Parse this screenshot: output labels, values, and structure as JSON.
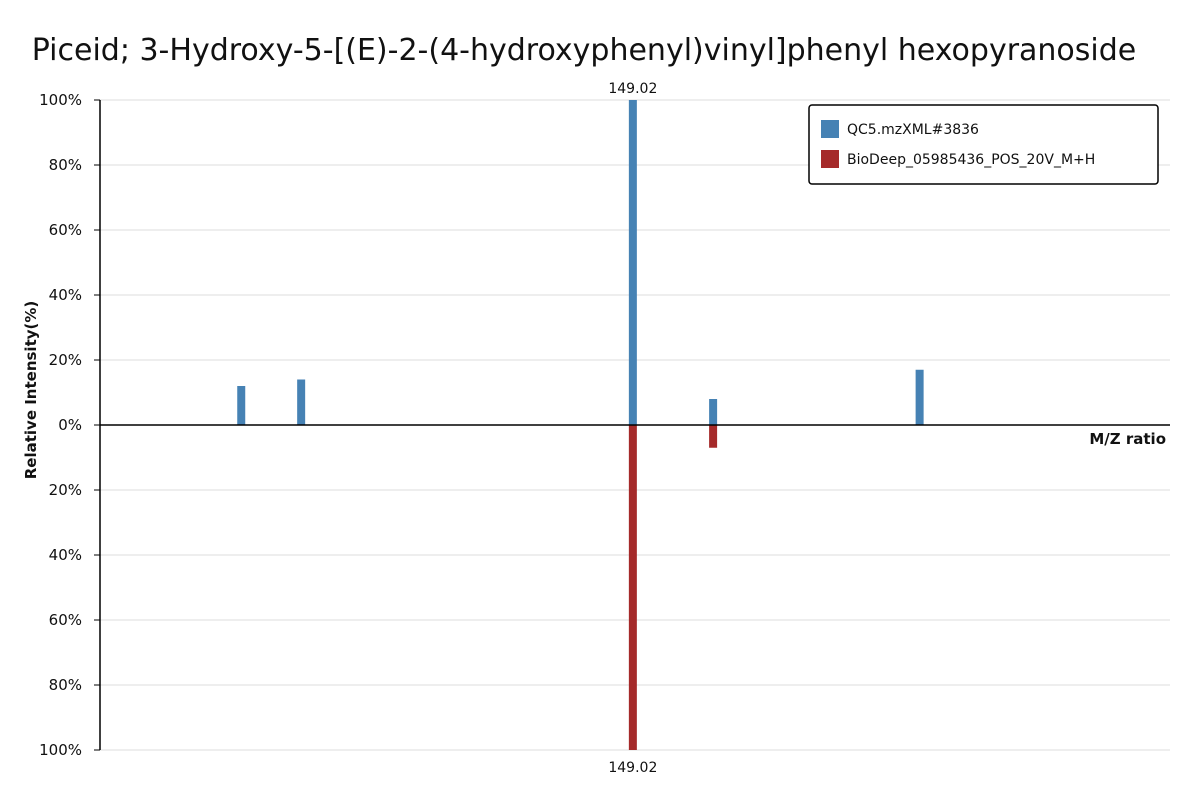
{
  "chart_data": {
    "type": "bar",
    "title": "Piceid;  3-Hydroxy-5-[(E)-2-(4-hydroxyphenyl)vinyl]phenyl  hexopyranoside",
    "ylabel": "Relative Intensity(%)",
    "xlabel": "M/Z ratio",
    "y_ticks_top": [
      "100%",
      "80%",
      "60%",
      "40%",
      "20%",
      "0%"
    ],
    "y_ticks_bottom": [
      "20%",
      "40%",
      "60%",
      "80%",
      "100%"
    ],
    "ylim": [
      -100,
      100
    ],
    "xlim": [
      0,
      1
    ],
    "grid": true,
    "legend_position": "top-right",
    "series": [
      {
        "name": "QC5.mzXML#3836",
        "color": "#4682b4",
        "direction": "up",
        "points": [
          {
            "x": 0.132,
            "y": 12
          },
          {
            "x": 0.188,
            "y": 14
          },
          {
            "x": 0.498,
            "y": 100,
            "label": "149.02"
          },
          {
            "x": 0.573,
            "y": 8
          },
          {
            "x": 0.766,
            "y": 17
          }
        ]
      },
      {
        "name": "BioDeep_05985436_POS_20V_M+H",
        "color": "#a52a2a",
        "direction": "down",
        "points": [
          {
            "x": 0.498,
            "y": 100,
            "label": "149.02"
          },
          {
            "x": 0.573,
            "y": 7
          }
        ]
      }
    ]
  }
}
